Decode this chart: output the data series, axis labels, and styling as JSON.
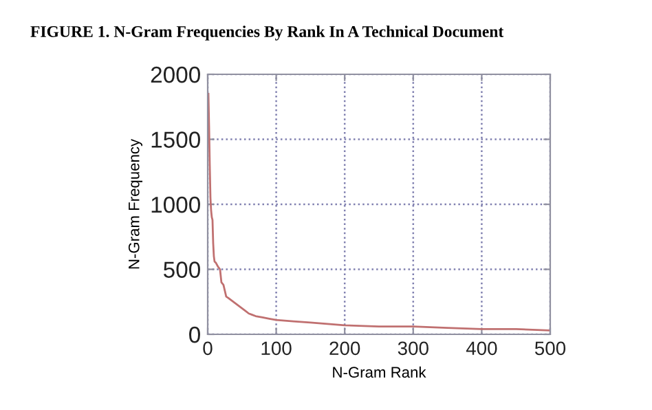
{
  "chart_data": {
    "type": "line",
    "title": "FIGURE 1. N-Gram Frequencies By Rank In A Technical Document",
    "xlabel": "N-Gram Rank",
    "ylabel": "N-Gram Frequency",
    "series": [
      {
        "color": "#c07070",
        "x": [
          1,
          2,
          3,
          4,
          5,
          6,
          7,
          8,
          9,
          10,
          12,
          15,
          18,
          20,
          23,
          27,
          30,
          35,
          40,
          45,
          50,
          55,
          60,
          65,
          70,
          80,
          90,
          100,
          125,
          150,
          175,
          200,
          250,
          300,
          350,
          400,
          450,
          500
        ],
        "values": [
          1850,
          1600,
          1300,
          1050,
          950,
          900,
          880,
          700,
          600,
          560,
          550,
          520,
          500,
          400,
          380,
          290,
          280,
          260,
          240,
          220,
          200,
          180,
          160,
          150,
          140,
          130,
          120,
          110,
          100,
          90,
          80,
          70,
          60,
          60,
          50,
          40,
          40,
          30
        ]
      }
    ],
    "xlim": [
      0,
      500
    ],
    "xticks": [
      0,
      100,
      200,
      300,
      400,
      500
    ],
    "ylim": [
      0,
      2000
    ],
    "yticks": [
      0,
      500,
      1000,
      1500,
      2000
    ],
    "grid": true,
    "line_style": "solid",
    "marker": "none"
  }
}
